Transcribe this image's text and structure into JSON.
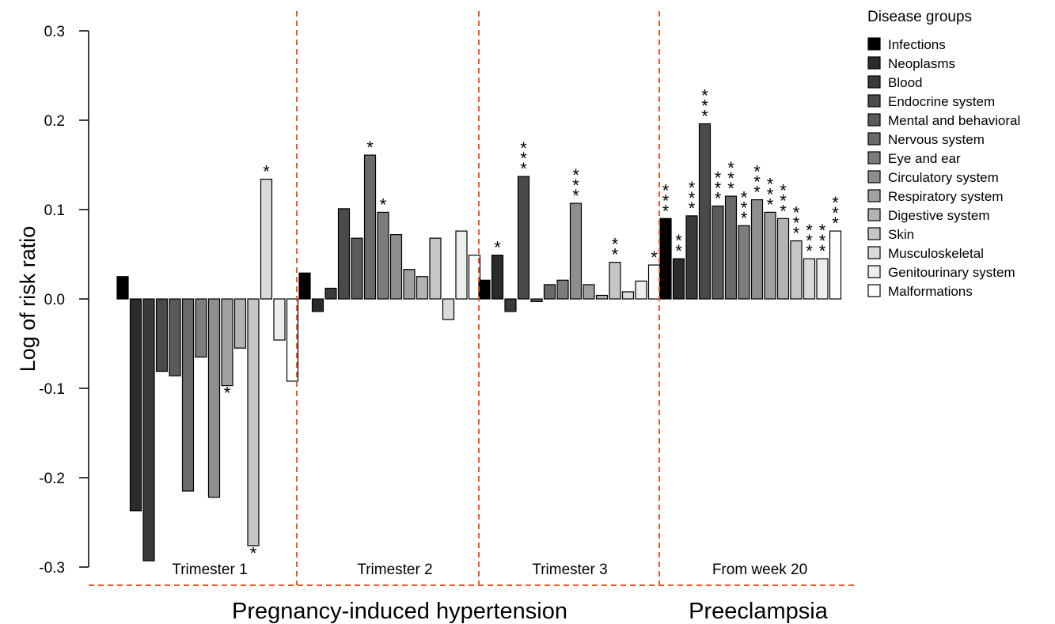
{
  "chart_data": {
    "type": "bar",
    "ylabel": "Log of risk ratio",
    "ylim": [
      -0.3,
      0.3
    ],
    "yticks": [
      "0.3",
      "0.2",
      "0.1",
      "0.0",
      "-0.1",
      "-0.2",
      "-0.3"
    ],
    "ytick_values": [
      0.3,
      0.2,
      0.1,
      0.0,
      -0.1,
      -0.2,
      -0.3
    ],
    "legend": {
      "title": "Disease groups",
      "position": "right",
      "colors": [
        "#000000",
        "#2b2b2b",
        "#3a3a3a",
        "#4a4a4a",
        "#5a5a5a",
        "#6a6a6a",
        "#7c7c7c",
        "#8e8e8e",
        "#a0a0a0",
        "#b3b3b3",
        "#c6c6c6",
        "#dadada",
        "#ededed",
        "#ffffff"
      ]
    },
    "categories": [
      "Infections",
      "Neoplasms",
      "Blood",
      "Endocrine system",
      "Mental and behavioral",
      "Nervous system",
      "Eye and ear",
      "Circulatory system",
      "Respiratory system",
      "Digestive system",
      "Skin",
      "Musculoskeletal",
      "Genitourinary system",
      "Malformations"
    ],
    "groups": [
      {
        "name": "Trimester 1",
        "values": [
          0.025,
          -0.237,
          -0.293,
          -0.081,
          -0.086,
          -0.215,
          -0.065,
          -0.222,
          -0.097,
          -0.055,
          -0.276,
          0.134,
          -0.046,
          -0.092
        ],
        "stars": [
          0,
          0,
          0,
          0,
          0,
          0,
          0,
          0,
          1,
          0,
          1,
          1,
          0,
          0
        ]
      },
      {
        "name": "Trimester 2",
        "values": [
          0.029,
          -0.014,
          0.012,
          0.101,
          0.068,
          0.161,
          0.097,
          0.072,
          0.033,
          0.025,
          0.068,
          -0.023,
          0.076,
          0.049
        ],
        "stars": [
          0,
          0,
          0,
          0,
          0,
          1,
          1,
          0,
          0,
          0,
          0,
          0,
          0,
          0
        ]
      },
      {
        "name": "Trimester 3",
        "values": [
          0.021,
          0.049,
          -0.014,
          0.137,
          -0.003,
          0.016,
          0.021,
          0.107,
          0.016,
          0.004,
          0.041,
          0.008,
          0.02,
          0.038
        ],
        "stars": [
          0,
          1,
          0,
          3,
          0,
          0,
          0,
          3,
          0,
          0,
          2,
          0,
          0,
          1
        ]
      },
      {
        "name": "From week 20",
        "values": [
          0.09,
          0.045,
          0.093,
          0.196,
          0.104,
          0.115,
          0.082,
          0.111,
          0.097,
          0.09,
          0.065,
          0.045,
          0.045,
          0.076
        ],
        "stars": [
          3,
          2,
          3,
          3,
          3,
          3,
          3,
          3,
          3,
          3,
          3,
          3,
          3,
          3
        ]
      }
    ],
    "outcomes": [
      "Pregnancy-induced hypertension",
      "Preeclampsia"
    ],
    "separator_color": "#f05a28"
  }
}
